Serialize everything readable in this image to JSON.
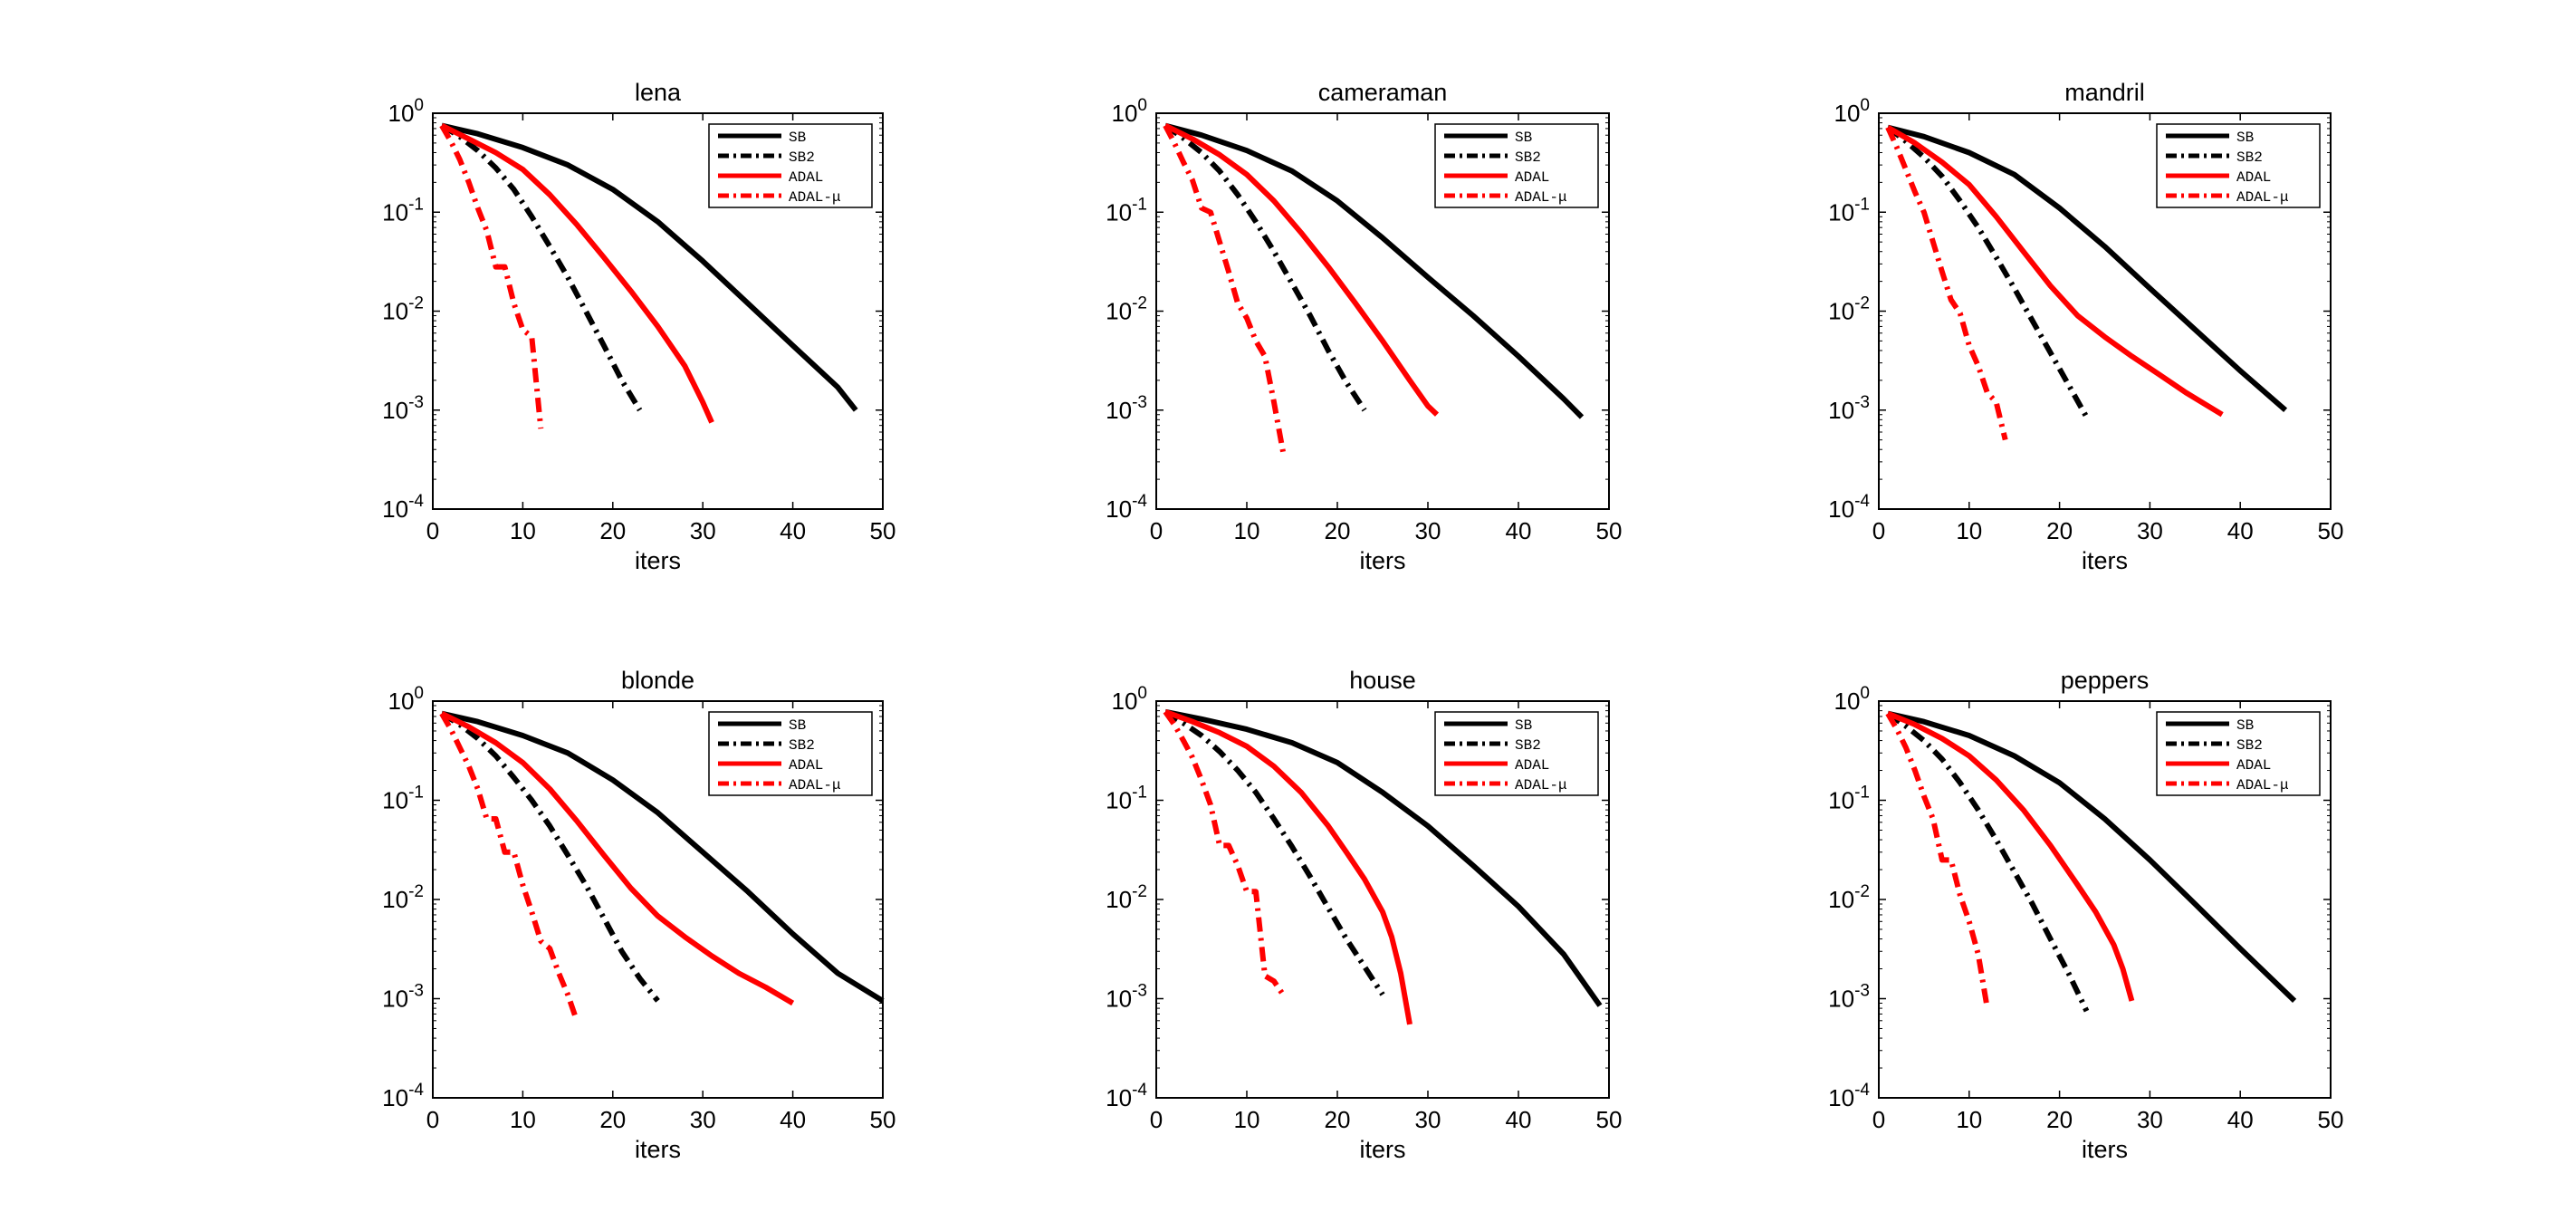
{
  "chart_data": [
    {
      "type": "line",
      "title": "lena",
      "xlabel": "iters",
      "ylabel": "",
      "xlim": [
        0,
        50
      ],
      "ylim": [
        0.0001,
        1
      ],
      "yscale": "log",
      "xticks": [
        0,
        10,
        20,
        30,
        40,
        50
      ],
      "yticks": [
        "10^0",
        "10^-1",
        "10^-2",
        "10^-3",
        "10^-4"
      ],
      "legend_position": "top-right",
      "series": [
        {
          "name": "SB",
          "style": "solid",
          "color": "#000000",
          "x": [
            1,
            5,
            10,
            15,
            20,
            25,
            30,
            35,
            40,
            45,
            47
          ],
          "y": [
            0.75,
            0.62,
            0.45,
            0.3,
            0.17,
            0.08,
            0.032,
            0.012,
            0.0045,
            0.0017,
            0.001
          ]
        },
        {
          "name": "SB2",
          "style": "dashdot",
          "color": "#000000",
          "x": [
            1,
            3,
            5,
            7,
            9,
            11,
            13,
            15,
            17,
            19,
            21,
            23
          ],
          "y": [
            0.75,
            0.58,
            0.42,
            0.28,
            0.17,
            0.09,
            0.045,
            0.022,
            0.01,
            0.0045,
            0.002,
            0.001
          ]
        },
        {
          "name": "ADAL",
          "style": "solid",
          "color": "#ff0000",
          "x": [
            1,
            4,
            7,
            10,
            13,
            16,
            19,
            22,
            25,
            28,
            30,
            31
          ],
          "y": [
            0.75,
            0.55,
            0.4,
            0.27,
            0.15,
            0.075,
            0.035,
            0.016,
            0.007,
            0.0028,
            0.0012,
            0.00075
          ]
        },
        {
          "name": "ADAL-μ",
          "style": "dashdot",
          "color": "#ff0000",
          "x": [
            1,
            2,
            3,
            4,
            5,
            6,
            7,
            8,
            9,
            10,
            11,
            12
          ],
          "y": [
            0.75,
            0.52,
            0.34,
            0.2,
            0.11,
            0.065,
            0.028,
            0.028,
            0.012,
            0.0065,
            0.0055,
            0.00065
          ]
        }
      ]
    },
    {
      "type": "line",
      "title": "cameraman",
      "xlabel": "iters",
      "ylabel": "",
      "xlim": [
        0,
        50
      ],
      "ylim": [
        0.0001,
        1
      ],
      "yscale": "log",
      "xticks": [
        0,
        10,
        20,
        30,
        40,
        50
      ],
      "yticks": [
        "10^0",
        "10^-1",
        "10^-2",
        "10^-3",
        "10^-4"
      ],
      "legend_position": "top-right",
      "series": [
        {
          "name": "SB",
          "style": "solid",
          "color": "#000000",
          "x": [
            1,
            5,
            10,
            15,
            20,
            25,
            30,
            35,
            40,
            45,
            47
          ],
          "y": [
            0.75,
            0.6,
            0.42,
            0.26,
            0.13,
            0.055,
            0.022,
            0.009,
            0.0035,
            0.0013,
            0.00085
          ]
        },
        {
          "name": "SB2",
          "style": "dashdot",
          "color": "#000000",
          "x": [
            1,
            3,
            5,
            7,
            9,
            11,
            13,
            15,
            17,
            19,
            21,
            23
          ],
          "y": [
            0.75,
            0.56,
            0.4,
            0.26,
            0.15,
            0.08,
            0.04,
            0.019,
            0.009,
            0.004,
            0.0019,
            0.001
          ]
        },
        {
          "name": "ADAL",
          "style": "solid",
          "color": "#ff0000",
          "x": [
            1,
            4,
            7,
            10,
            13,
            16,
            19,
            22,
            25,
            28,
            30,
            31
          ],
          "y": [
            0.75,
            0.55,
            0.38,
            0.24,
            0.13,
            0.062,
            0.028,
            0.012,
            0.005,
            0.002,
            0.0011,
            0.0009
          ]
        },
        {
          "name": "ADAL-μ",
          "style": "dashdot",
          "color": "#ff0000",
          "x": [
            1,
            2,
            3,
            4,
            5,
            6,
            7,
            8,
            9,
            10,
            11,
            12,
            13,
            14
          ],
          "y": [
            0.75,
            0.5,
            0.32,
            0.21,
            0.11,
            0.1,
            0.05,
            0.025,
            0.012,
            0.0085,
            0.005,
            0.0035,
            0.0012,
            0.00038
          ]
        }
      ]
    },
    {
      "type": "line",
      "title": "mandril",
      "xlabel": "iters",
      "ylabel": "",
      "xlim": [
        0,
        50
      ],
      "ylim": [
        0.0001,
        1
      ],
      "yscale": "log",
      "xticks": [
        0,
        10,
        20,
        30,
        40,
        50
      ],
      "yticks": [
        "10^0",
        "10^-1",
        "10^-2",
        "10^-3",
        "10^-4"
      ],
      "legend_position": "top-right",
      "series": [
        {
          "name": "SB",
          "style": "solid",
          "color": "#000000",
          "x": [
            1,
            5,
            10,
            15,
            20,
            25,
            30,
            35,
            40,
            45
          ],
          "y": [
            0.72,
            0.58,
            0.4,
            0.24,
            0.11,
            0.045,
            0.017,
            0.0065,
            0.0025,
            0.001
          ]
        },
        {
          "name": "SB2",
          "style": "dashdot",
          "color": "#000000",
          "x": [
            1,
            3,
            5,
            7,
            9,
            11,
            13,
            15,
            17,
            19,
            21,
            23
          ],
          "y": [
            0.72,
            0.52,
            0.36,
            0.23,
            0.13,
            0.07,
            0.035,
            0.017,
            0.008,
            0.0038,
            0.0018,
            0.00085
          ]
        },
        {
          "name": "ADAL",
          "style": "solid",
          "color": "#ff0000",
          "x": [
            1,
            4,
            7,
            10,
            13,
            16,
            19,
            22,
            25,
            28,
            31,
            34,
            38
          ],
          "y": [
            0.72,
            0.5,
            0.32,
            0.19,
            0.09,
            0.04,
            0.018,
            0.009,
            0.0055,
            0.0035,
            0.0023,
            0.0015,
            0.0009
          ]
        },
        {
          "name": "ADAL-μ",
          "style": "dashdot",
          "color": "#ff0000",
          "x": [
            1,
            2,
            3,
            4,
            5,
            6,
            7,
            8,
            9,
            10,
            11,
            12,
            13,
            14
          ],
          "y": [
            0.72,
            0.45,
            0.27,
            0.16,
            0.1,
            0.05,
            0.025,
            0.013,
            0.0095,
            0.0045,
            0.0028,
            0.0015,
            0.0012,
            0.0005
          ]
        }
      ]
    },
    {
      "type": "line",
      "title": "blonde",
      "xlabel": "iters",
      "ylabel": "",
      "xlim": [
        0,
        50
      ],
      "ylim": [
        0.0001,
        1
      ],
      "yscale": "log",
      "xticks": [
        0,
        10,
        20,
        30,
        40,
        50
      ],
      "yticks": [
        "10^0",
        "10^-1",
        "10^-2",
        "10^-3",
        "10^-4"
      ],
      "legend_position": "top-right",
      "series": [
        {
          "name": "SB",
          "style": "solid",
          "color": "#000000",
          "x": [
            1,
            5,
            10,
            15,
            20,
            25,
            30,
            35,
            40,
            45,
            50
          ],
          "y": [
            0.75,
            0.62,
            0.45,
            0.3,
            0.16,
            0.075,
            0.03,
            0.012,
            0.0045,
            0.0018,
            0.00095
          ]
        },
        {
          "name": "SB2",
          "style": "dashdot",
          "color": "#000000",
          "x": [
            1,
            3,
            5,
            7,
            9,
            11,
            13,
            15,
            17,
            19,
            21,
            23,
            25
          ],
          "y": [
            0.75,
            0.58,
            0.42,
            0.28,
            0.17,
            0.1,
            0.055,
            0.028,
            0.014,
            0.0065,
            0.003,
            0.0016,
            0.00095
          ]
        },
        {
          "name": "ADAL",
          "style": "solid",
          "color": "#ff0000",
          "x": [
            1,
            4,
            7,
            10,
            13,
            16,
            19,
            22,
            25,
            28,
            31,
            34,
            37,
            40
          ],
          "y": [
            0.75,
            0.55,
            0.38,
            0.24,
            0.13,
            0.062,
            0.028,
            0.013,
            0.0068,
            0.0042,
            0.0027,
            0.0018,
            0.0013,
            0.0009
          ]
        },
        {
          "name": "ADAL-μ",
          "style": "dashdot",
          "color": "#ff0000",
          "x": [
            1,
            2,
            3,
            4,
            5,
            6,
            7,
            8,
            9,
            10,
            11,
            12,
            13,
            14,
            15,
            16
          ],
          "y": [
            0.75,
            0.52,
            0.34,
            0.22,
            0.13,
            0.065,
            0.065,
            0.03,
            0.03,
            0.014,
            0.0075,
            0.0038,
            0.0032,
            0.0018,
            0.0011,
            0.0006
          ]
        }
      ]
    },
    {
      "type": "line",
      "title": "house",
      "xlabel": "iters",
      "ylabel": "",
      "xlim": [
        0,
        50
      ],
      "ylim": [
        0.0001,
        1
      ],
      "yscale": "log",
      "xticks": [
        0,
        10,
        20,
        30,
        40,
        50
      ],
      "yticks": [
        "10^0",
        "10^-1",
        "10^-2",
        "10^-3",
        "10^-4"
      ],
      "legend_position": "top-right",
      "series": [
        {
          "name": "SB",
          "style": "solid",
          "color": "#000000",
          "x": [
            1,
            5,
            10,
            15,
            20,
            25,
            30,
            35,
            40,
            45,
            49
          ],
          "y": [
            0.78,
            0.66,
            0.52,
            0.38,
            0.24,
            0.12,
            0.055,
            0.022,
            0.0085,
            0.0028,
            0.00085
          ]
        },
        {
          "name": "SB2",
          "style": "dashdot",
          "color": "#000000",
          "x": [
            1,
            3,
            5,
            7,
            9,
            11,
            13,
            15,
            17,
            19,
            21,
            23,
            25
          ],
          "y": [
            0.78,
            0.6,
            0.45,
            0.31,
            0.2,
            0.12,
            0.065,
            0.034,
            0.017,
            0.0082,
            0.004,
            0.0021,
            0.0011
          ]
        },
        {
          "name": "ADAL",
          "style": "solid",
          "color": "#ff0000",
          "x": [
            1,
            4,
            7,
            10,
            13,
            16,
            19,
            21,
            23,
            25,
            26,
            27,
            28
          ],
          "y": [
            0.78,
            0.62,
            0.48,
            0.35,
            0.22,
            0.12,
            0.055,
            0.03,
            0.016,
            0.0075,
            0.0042,
            0.0018,
            0.00055
          ]
        },
        {
          "name": "ADAL-μ",
          "style": "dashdot",
          "color": "#ff0000",
          "x": [
            1,
            2,
            3,
            4,
            5,
            6,
            7,
            8,
            9,
            10,
            11,
            12,
            13,
            14
          ],
          "y": [
            0.78,
            0.58,
            0.4,
            0.27,
            0.16,
            0.09,
            0.035,
            0.035,
            0.022,
            0.012,
            0.012,
            0.0017,
            0.0015,
            0.0011
          ]
        }
      ]
    },
    {
      "type": "line",
      "title": "peppers",
      "xlabel": "iters",
      "ylabel": "",
      "xlim": [
        0,
        50
      ],
      "ylim": [
        0.0001,
        1
      ],
      "yscale": "log",
      "xticks": [
        0,
        10,
        20,
        30,
        40,
        50
      ],
      "yticks": [
        "10^0",
        "10^-1",
        "10^-2",
        "10^-3",
        "10^-4"
      ],
      "legend_position": "top-right",
      "series": [
        {
          "name": "SB",
          "style": "solid",
          "color": "#000000",
          "x": [
            1,
            5,
            10,
            15,
            20,
            25,
            30,
            35,
            40,
            46
          ],
          "y": [
            0.75,
            0.62,
            0.45,
            0.28,
            0.15,
            0.065,
            0.025,
            0.009,
            0.0032,
            0.00095
          ]
        },
        {
          "name": "SB2",
          "style": "dashdot",
          "color": "#000000",
          "x": [
            1,
            3,
            5,
            7,
            9,
            11,
            13,
            15,
            17,
            19,
            21,
            23
          ],
          "y": [
            0.75,
            0.56,
            0.4,
            0.26,
            0.15,
            0.08,
            0.04,
            0.019,
            0.009,
            0.004,
            0.0018,
            0.00075
          ]
        },
        {
          "name": "ADAL",
          "style": "solid",
          "color": "#ff0000",
          "x": [
            1,
            4,
            7,
            10,
            13,
            16,
            19,
            22,
            24,
            26,
            27,
            28
          ],
          "y": [
            0.75,
            0.58,
            0.42,
            0.28,
            0.16,
            0.08,
            0.035,
            0.014,
            0.0075,
            0.0035,
            0.002,
            0.00095
          ]
        },
        {
          "name": "ADAL-μ",
          "style": "dashdot",
          "color": "#ff0000",
          "x": [
            1,
            2,
            3,
            4,
            5,
            6,
            7,
            8,
            9,
            10,
            11,
            12
          ],
          "y": [
            0.75,
            0.52,
            0.34,
            0.2,
            0.11,
            0.065,
            0.025,
            0.025,
            0.011,
            0.006,
            0.0028,
            0.0008
          ]
        }
      ]
    }
  ]
}
